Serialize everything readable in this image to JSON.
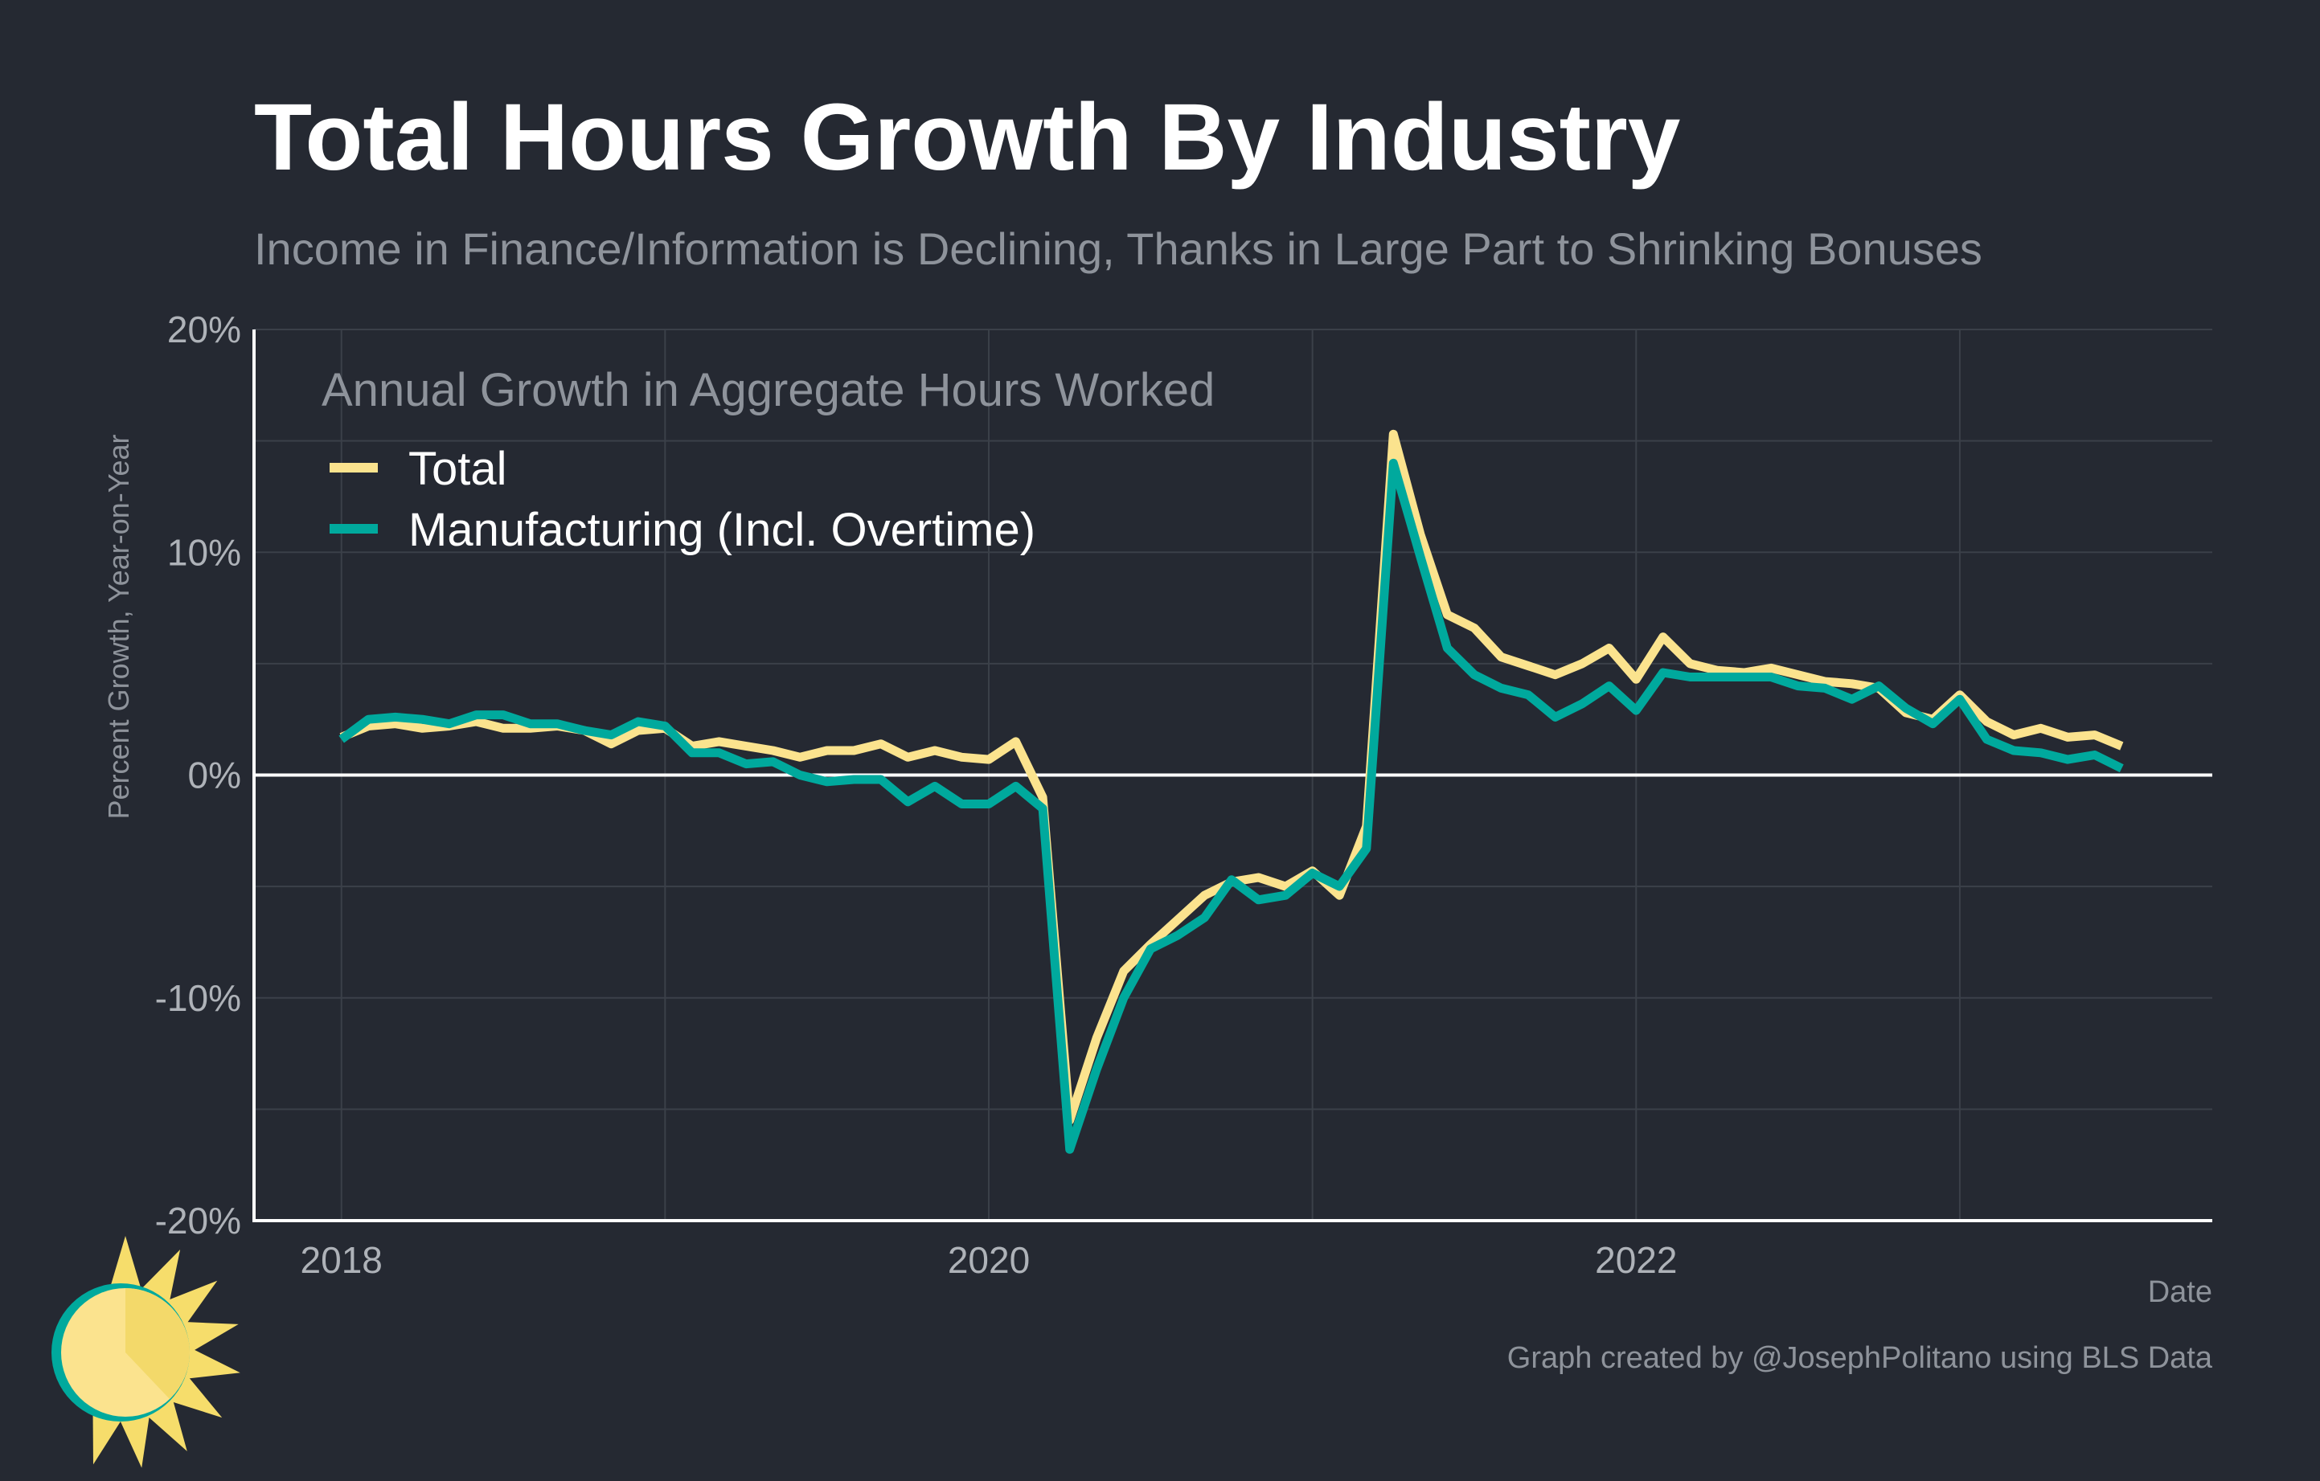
{
  "title": "Total Hours Growth By Industry",
  "subtitle": "Income in Finance/Information is Declining, Thanks in Large Part to Shrinking Bonuses",
  "caption": "Graph created by @JosephPolitano using BLS Data",
  "logo_icon": "sun-logo-icon",
  "colors": {
    "background": "#252932",
    "total": "#fbe38e",
    "manufacturing": "#00a99d",
    "grid": "#3b4049",
    "axis": "#ffffff"
  },
  "chart_data": {
    "type": "line",
    "ylabel": "Percent Growth, Year-on-Year",
    "xlabel": "Date",
    "legend_title": "Annual Growth in Aggregate Hours Worked",
    "legend_position": "top-left",
    "grid": true,
    "xlim": [
      2017.73,
      2023.78
    ],
    "ylim": [
      -20,
      20
    ],
    "x_ticks": [
      2018,
      2020,
      2022
    ],
    "x_tick_labels": [
      "2018",
      "2020",
      "2022"
    ],
    "y_ticks": [
      -20,
      -10,
      0,
      10,
      20
    ],
    "y_tick_labels": [
      "-20%",
      "-10%",
      "0%",
      "10%",
      "20%"
    ],
    "x_start": "2018-01",
    "x_end": "2023-07",
    "series": [
      {
        "name": "Total",
        "color": "#fbe38e",
        "values": [
          1.7,
          2.2,
          2.3,
          2.1,
          2.2,
          2.4,
          2.1,
          2.1,
          2.2,
          2.0,
          1.4,
          2.0,
          2.1,
          1.3,
          1.5,
          1.3,
          1.1,
          0.8,
          1.1,
          1.1,
          1.4,
          0.8,
          1.1,
          0.8,
          0.7,
          1.5,
          -1.0,
          -15.5,
          -11.8,
          -8.8,
          -7.6,
          -6.5,
          -5.4,
          -4.8,
          -4.6,
          -5.0,
          -4.3,
          -5.4,
          -2.3,
          15.3,
          10.8,
          7.2,
          6.6,
          5.3,
          4.9,
          4.5,
          5.0,
          5.7,
          4.3,
          6.2,
          5.0,
          4.7,
          4.6,
          4.8,
          4.5,
          4.2,
          4.1,
          3.9,
          2.8,
          2.5,
          3.6,
          2.4,
          1.8,
          2.1,
          1.7,
          1.8,
          1.3
        ]
      },
      {
        "name": "Manufacturing (Incl. Overtime)",
        "color": "#00a99d",
        "values": [
          1.6,
          2.5,
          2.6,
          2.5,
          2.3,
          2.7,
          2.7,
          2.3,
          2.3,
          2.0,
          1.8,
          2.4,
          2.2,
          1.0,
          1.0,
          0.5,
          0.6,
          0.0,
          -0.3,
          -0.2,
          -0.2,
          -1.2,
          -0.5,
          -1.3,
          -1.3,
          -0.5,
          -1.5,
          -16.8,
          -13.2,
          -10.0,
          -7.8,
          -7.2,
          -6.4,
          -4.7,
          -5.6,
          -5.4,
          -4.4,
          -5.0,
          -3.3,
          14.0,
          9.8,
          5.7,
          4.5,
          3.9,
          3.6,
          2.6,
          3.2,
          4.0,
          2.9,
          4.6,
          4.4,
          4.4,
          4.4,
          4.4,
          4.0,
          3.9,
          3.4,
          4.0,
          3.0,
          2.3,
          3.4,
          1.6,
          1.1,
          1.0,
          0.7,
          0.9,
          0.3
        ]
      }
    ]
  }
}
